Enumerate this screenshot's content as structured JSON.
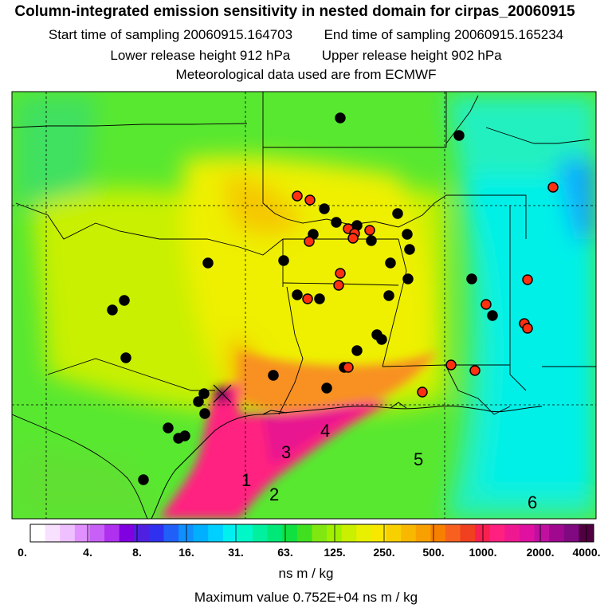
{
  "title": {
    "main": "Column-integrated emission sensitivity in nested domain for cirpas_20060915",
    "start_label": "Start time of sampling",
    "start_value": "20060915.164703",
    "end_label": "End time of sampling",
    "end_value": "20060915.165234",
    "lower_label": "Lower release height",
    "lower_value": "912 hPa",
    "upper_label": "Upper release height",
    "upper_value": "902 hPa",
    "met_line": "Meteorological data used are from ECMWF"
  },
  "map": {
    "region_labels": [
      "1",
      "2",
      "3",
      "4",
      "5",
      "6"
    ],
    "colors": {
      "background": "#55ee22",
      "yellow": "#eef000",
      "orange": "#f5c000",
      "magenta": "#ff2080",
      "cyan": "#00f0e0",
      "dot_black": "#000000",
      "dot_red": "#ff3010"
    }
  },
  "colorbar": {
    "tick_labels": [
      "0.",
      "4.",
      "8.",
      "16.",
      "31.",
      "63.",
      "125.",
      "250.",
      "500.",
      "1000.",
      "2000.",
      "4000."
    ],
    "colors": [
      "#ffffff",
      "#f8e0ff",
      "#eec0ff",
      "#e090ff",
      "#c860f8",
      "#b030f0",
      "#8000e0",
      "#5020e0",
      "#3030f0",
      "#2060f8",
      "#1090ff",
      "#00b0ff",
      "#00d0ff",
      "#00f0f0",
      "#00f8c8",
      "#00f0a0",
      "#00e878",
      "#10e040",
      "#40e020",
      "#80e810",
      "#a0f000",
      "#c8f000",
      "#e8f000",
      "#f8e800",
      "#f8d000",
      "#f8b800",
      "#f8a000",
      "#f88000",
      "#f86020",
      "#f04020",
      "#f82050",
      "#ff2080",
      "#f01890",
      "#e010a0",
      "#c010a0",
      "#a00890",
      "#800880",
      "#500040"
    ],
    "units": "ns m / kg"
  },
  "max_value_text": "Maximum value  0.752E+04 ns m / kg"
}
